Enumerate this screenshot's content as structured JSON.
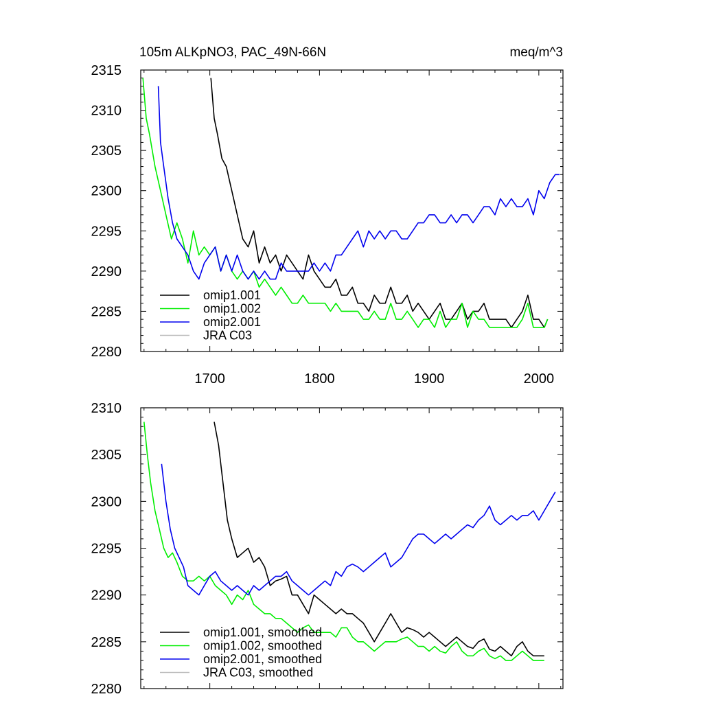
{
  "chart_data": [
    {
      "type": "line",
      "title_left": "105m ALKpNO3, PAC_49N-66N",
      "title_right": "meq/m^3",
      "xlabel": "",
      "ylabel": "",
      "xlim": [
        1637,
        2022
      ],
      "ylim": [
        2280,
        2315
      ],
      "xticks": [
        1700,
        1800,
        1900,
        2000
      ],
      "yticks": [
        2280,
        2285,
        2290,
        2295,
        2300,
        2305,
        2310,
        2315
      ],
      "legend": [
        "omip1.001",
        "omip1.002",
        "omip2.001",
        "JRA C03"
      ],
      "legend_position": "bottom-left",
      "series": [
        {
          "name": "omip1.001",
          "color": "#000000",
          "x": [
            1701,
            1704,
            1707,
            1711,
            1715,
            1720,
            1725,
            1730,
            1735,
            1740,
            1745,
            1750,
            1755,
            1760,
            1765,
            1770,
            1775,
            1780,
            1785,
            1790,
            1795,
            1800,
            1805,
            1810,
            1815,
            1820,
            1825,
            1830,
            1835,
            1840,
            1845,
            1850,
            1855,
            1860,
            1865,
            1870,
            1875,
            1880,
            1885,
            1890,
            1895,
            1900,
            1905,
            1910,
            1915,
            1920,
            1925,
            1930,
            1935,
            1940,
            1945,
            1950,
            1955,
            1960,
            1965,
            1970,
            1975,
            1980,
            1985,
            1990,
            1995,
            2000,
            2005,
            2008
          ],
          "values": [
            2314,
            2309,
            2307,
            2304,
            2303,
            2300,
            2297,
            2294,
            2293,
            2295,
            2291,
            2293,
            2291,
            2292,
            2290,
            2292,
            2291,
            2290,
            2289,
            2292,
            2290,
            2289,
            2288,
            2288,
            2289,
            2287,
            2287,
            2288,
            2286,
            2286,
            2285,
            2287,
            2286,
            2286,
            2288,
            2286,
            2286,
            2287,
            2285,
            2286,
            2285,
            2284,
            2285,
            2286,
            2284,
            2284,
            2285,
            2286,
            2284,
            2285,
            2285,
            2286,
            2284,
            2284,
            2284,
            2284,
            2283,
            2284,
            2285,
            2287,
            2284,
            2284,
            2283,
            2284
          ]
        },
        {
          "name": "omip1.002",
          "color": "#00ee00",
          "x": [
            1639,
            1642,
            1645,
            1650,
            1655,
            1660,
            1665,
            1670,
            1675,
            1680,
            1685,
            1690,
            1695,
            1700,
            1705,
            1710,
            1715,
            1720,
            1725,
            1730,
            1735,
            1740,
            1745,
            1750,
            1755,
            1760,
            1765,
            1770,
            1775,
            1780,
            1785,
            1790,
            1795,
            1800,
            1805,
            1810,
            1815,
            1820,
            1825,
            1830,
            1835,
            1840,
            1845,
            1850,
            1855,
            1860,
            1865,
            1870,
            1875,
            1880,
            1885,
            1890,
            1895,
            1900,
            1905,
            1910,
            1915,
            1920,
            1925,
            1930,
            1935,
            1940,
            1945,
            1950,
            1955,
            1960,
            1965,
            1970,
            1975,
            1980,
            1985,
            1990,
            1995,
            2000,
            2005,
            2008
          ],
          "values": [
            2314,
            2309,
            2307,
            2303,
            2300,
            2297,
            2294,
            2296,
            2294,
            2291,
            2295,
            2292,
            2293,
            2292,
            2293,
            2290,
            2292,
            2290,
            2289,
            2290,
            2289,
            2290,
            2288,
            2289,
            2288,
            2287,
            2288,
            2287,
            2286,
            2286,
            2287,
            2286,
            2286,
            2286,
            2286,
            2285,
            2286,
            2285,
            2285,
            2285,
            2285,
            2284,
            2284,
            2285,
            2284,
            2284,
            2286,
            2284,
            2284,
            2285,
            2284,
            2283,
            2284,
            2284,
            2283,
            2285,
            2283,
            2284,
            2284,
            2286,
            2283,
            2285,
            2284,
            2284,
            2283,
            2283,
            2283,
            2283,
            2283,
            2283,
            2284,
            2286,
            2283,
            2283,
            2283,
            2284
          ]
        },
        {
          "name": "omip2.001",
          "color": "#0000ee",
          "x": [
            1653,
            1655,
            1658,
            1662,
            1666,
            1670,
            1675,
            1680,
            1685,
            1690,
            1695,
            1700,
            1705,
            1710,
            1715,
            1720,
            1725,
            1730,
            1735,
            1740,
            1745,
            1750,
            1755,
            1760,
            1765,
            1770,
            1775,
            1780,
            1785,
            1790,
            1795,
            1800,
            1805,
            1810,
            1815,
            1820,
            1825,
            1830,
            1835,
            1840,
            1845,
            1850,
            1855,
            1860,
            1865,
            1870,
            1875,
            1880,
            1885,
            1890,
            1895,
            1900,
            1905,
            1910,
            1915,
            1920,
            1925,
            1930,
            1935,
            1940,
            1945,
            1950,
            1955,
            1960,
            1965,
            1970,
            1975,
            1980,
            1985,
            1990,
            1995,
            2000,
            2005,
            2010,
            2015,
            2019
          ],
          "values": [
            2313,
            2306,
            2303,
            2299,
            2296,
            2294,
            2293,
            2292,
            2290,
            2289,
            2291,
            2292,
            2293,
            2290,
            2292,
            2290,
            2292,
            2290,
            2289,
            2290,
            2289,
            2290,
            2289,
            2289,
            2291,
            2290,
            2290,
            2290,
            2290,
            2290,
            2291,
            2290,
            2291,
            2290,
            2292,
            2292,
            2293,
            2294,
            2295,
            2293,
            2295,
            2294,
            2295,
            2294,
            2295,
            2295,
            2294,
            2294,
            2295,
            2296,
            2296,
            2297,
            2297,
            2296,
            2296,
            2297,
            2296,
            2297,
            2297,
            2296,
            2297,
            2298,
            2298,
            2297,
            2299,
            2298,
            2299,
            2298,
            2298,
            2299,
            2297,
            2300,
            2299,
            2301,
            2302,
            2302
          ]
        },
        {
          "name": "JRA C03",
          "color": "#bbbbbb",
          "x": [],
          "values": []
        }
      ]
    },
    {
      "type": "line",
      "title_left": "",
      "title_right": "",
      "xlabel": "",
      "ylabel": "",
      "xlim": [
        1637,
        2022
      ],
      "ylim": [
        2280,
        2310
      ],
      "xticks": [
        1700,
        1800,
        1900,
        2000
      ],
      "yticks": [
        2280,
        2285,
        2290,
        2295,
        2300,
        2305,
        2310
      ],
      "legend": [
        "omip1.001, smoothed",
        "omip1.002, smoothed",
        "omip2.001, smoothed",
        "JRA C03, smoothed"
      ],
      "legend_position": "bottom-left",
      "series": [
        {
          "name": "omip1.001, smoothed",
          "color": "#000000",
          "x": [
            1704,
            1708,
            1712,
            1716,
            1720,
            1725,
            1730,
            1735,
            1740,
            1745,
            1750,
            1755,
            1760,
            1765,
            1770,
            1775,
            1780,
            1785,
            1790,
            1795,
            1800,
            1805,
            1810,
            1815,
            1820,
            1825,
            1830,
            1835,
            1840,
            1845,
            1850,
            1855,
            1860,
            1865,
            1870,
            1875,
            1880,
            1885,
            1890,
            1895,
            1900,
            1905,
            1910,
            1915,
            1920,
            1925,
            1930,
            1935,
            1940,
            1945,
            1950,
            1955,
            1960,
            1965,
            1970,
            1975,
            1980,
            1985,
            1990,
            1995,
            2000,
            2005
          ],
          "values": [
            2308.5,
            2306,
            2302,
            2298,
            2296,
            2294,
            2294.5,
            2295,
            2293.5,
            2294,
            2293,
            2291,
            2291.5,
            2291.7,
            2292,
            2290,
            2290,
            2289,
            2288,
            2290,
            2289.5,
            2289,
            2288.5,
            2288,
            2288.5,
            2288,
            2288,
            2287.5,
            2287,
            2286,
            2285,
            2286,
            2287,
            2288,
            2287,
            2286,
            2286.5,
            2286.3,
            2286,
            2285.5,
            2286,
            2285.5,
            2285,
            2284.5,
            2285,
            2285.5,
            2285,
            2284.5,
            2284.3,
            2285,
            2285.3,
            2284.2,
            2284,
            2284.5,
            2284,
            2283.5,
            2284.5,
            2285,
            2284,
            2283.5,
            2283.5,
            2283.5
          ]
        },
        {
          "name": "omip1.002, smoothed",
          "color": "#00ee00",
          "x": [
            1640,
            1643,
            1646,
            1650,
            1654,
            1658,
            1662,
            1666,
            1670,
            1675,
            1680,
            1685,
            1690,
            1695,
            1700,
            1705,
            1710,
            1715,
            1720,
            1725,
            1730,
            1735,
            1740,
            1745,
            1750,
            1755,
            1760,
            1765,
            1770,
            1775,
            1780,
            1785,
            1790,
            1795,
            1800,
            1805,
            1810,
            1815,
            1820,
            1825,
            1830,
            1835,
            1840,
            1845,
            1850,
            1855,
            1860,
            1865,
            1870,
            1875,
            1880,
            1885,
            1890,
            1895,
            1900,
            1905,
            1910,
            1915,
            1920,
            1925,
            1930,
            1935,
            1940,
            1945,
            1950,
            1955,
            1960,
            1965,
            1970,
            1975,
            1980,
            1985,
            1990,
            1995,
            2000,
            2005
          ],
          "values": [
            2308.5,
            2305,
            2302,
            2299,
            2297,
            2295,
            2294,
            2294.5,
            2293.5,
            2292,
            2291.5,
            2291.5,
            2292,
            2291.5,
            2292,
            2291,
            2290.5,
            2290,
            2289,
            2290,
            2289.5,
            2290.5,
            2289,
            2288.5,
            2288,
            2288,
            2287.5,
            2287.5,
            2287,
            2286.5,
            2286,
            2286.5,
            2286.8,
            2286,
            2286,
            2286,
            2286,
            2285.5,
            2286.5,
            2286.5,
            2285.5,
            2285,
            2285,
            2284.5,
            2284,
            2284.5,
            2285,
            2285,
            2285,
            2285.3,
            2285.5,
            2285,
            2284.5,
            2284.5,
            2284,
            2284.5,
            2284,
            2283.8,
            2284.5,
            2285,
            2284,
            2283.5,
            2283.5,
            2284,
            2284.3,
            2283.5,
            2283.2,
            2283.5,
            2283,
            2283,
            2283.5,
            2284,
            2283.5,
            2283,
            2283,
            2283
          ]
        },
        {
          "name": "omip2.001, smoothed",
          "color": "#0000ee",
          "x": [
            1656,
            1660,
            1664,
            1668,
            1672,
            1676,
            1680,
            1685,
            1690,
            1695,
            1700,
            1705,
            1710,
            1715,
            1720,
            1725,
            1730,
            1735,
            1740,
            1745,
            1750,
            1755,
            1760,
            1765,
            1770,
            1775,
            1780,
            1785,
            1790,
            1795,
            1800,
            1805,
            1810,
            1815,
            1820,
            1825,
            1830,
            1835,
            1840,
            1845,
            1850,
            1855,
            1860,
            1865,
            1870,
            1875,
            1880,
            1885,
            1890,
            1895,
            1900,
            1905,
            1910,
            1915,
            1920,
            1925,
            1930,
            1935,
            1940,
            1945,
            1950,
            1955,
            1960,
            1965,
            1970,
            1975,
            1980,
            1985,
            1990,
            1995,
            2000,
            2005,
            2010,
            2015
          ],
          "values": [
            2304,
            2300,
            2297,
            2295,
            2294,
            2293,
            2291,
            2290.5,
            2290,
            2291,
            2292,
            2292.5,
            2291.5,
            2291,
            2290.5,
            2291,
            2290.5,
            2290,
            2291,
            2290.5,
            2291,
            2291.5,
            2292,
            2292,
            2292.5,
            2291.5,
            2291,
            2290.5,
            2290,
            2290.5,
            2291,
            2291.5,
            2291,
            2292.5,
            2292,
            2293,
            2293.3,
            2293,
            2292.5,
            2293,
            2293.5,
            2294,
            2294.5,
            2293,
            2293.5,
            2294,
            2295,
            2296,
            2296.5,
            2296.5,
            2296,
            2295.5,
            2296,
            2296.5,
            2296,
            2296.5,
            2297,
            2297.5,
            2297.2,
            2298,
            2298.5,
            2299.5,
            2298,
            2297.5,
            2298,
            2298.5,
            2298,
            2298.5,
            2298.5,
            2299,
            2298,
            2299,
            2300,
            2301
          ]
        },
        {
          "name": "JRA C03, smoothed",
          "color": "#bbbbbb",
          "x": [],
          "values": []
        }
      ]
    }
  ]
}
